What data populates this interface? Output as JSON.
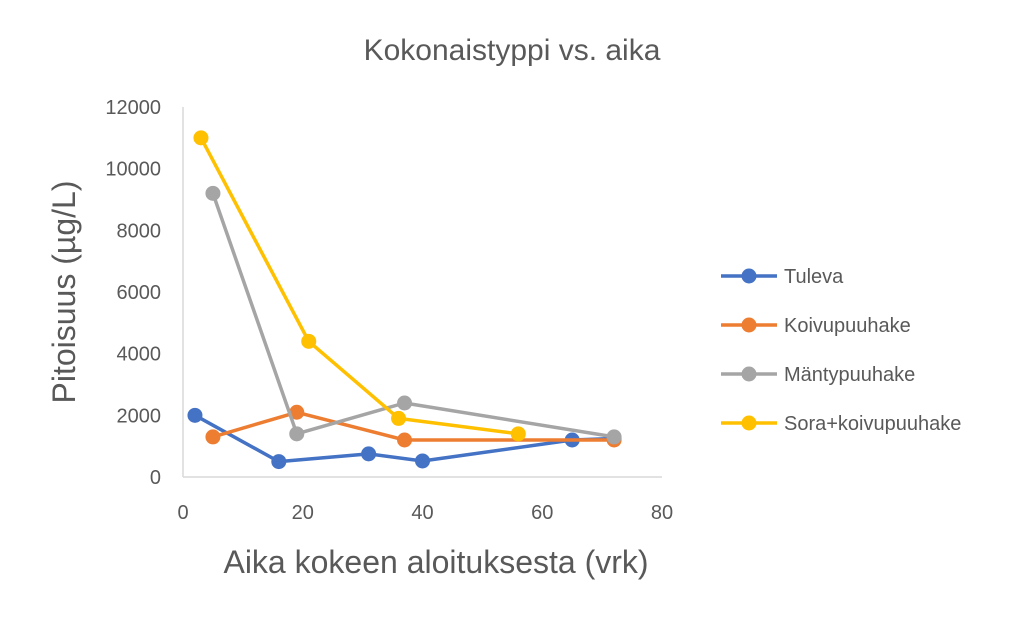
{
  "chart_data": {
    "type": "line",
    "title": "Kokonaistyppi vs. aika",
    "xlabel": "Aika kokeen aloituksesta (vrk)",
    "ylabel": "Pitoisuus (µg/L)",
    "xlim": [
      0,
      80
    ],
    "ylim": [
      0,
      12000
    ],
    "x_ticks": [
      0,
      20,
      40,
      60,
      80
    ],
    "y_ticks": [
      0,
      2000,
      4000,
      6000,
      8000,
      10000,
      12000
    ],
    "grid": false,
    "legend_position": "right",
    "series": [
      {
        "name": "Tuleva",
        "color": "#4472c4",
        "points": [
          [
            2,
            2000
          ],
          [
            16,
            500
          ],
          [
            31,
            750
          ],
          [
            40,
            520
          ],
          [
            65,
            1200
          ],
          [
            72,
            1250
          ]
        ]
      },
      {
        "name": "Koivupuuhake",
        "color": "#ed7d31",
        "points": [
          [
            5,
            1300
          ],
          [
            19,
            2100
          ],
          [
            37,
            1200
          ],
          [
            72,
            1200
          ]
        ]
      },
      {
        "name": "Mäntypuuhake",
        "color": "#a5a5a5",
        "points": [
          [
            5,
            9200
          ],
          [
            19,
            1400
          ],
          [
            37,
            2400
          ],
          [
            72,
            1300
          ]
        ]
      },
      {
        "name": "Sora+koivupuuhake",
        "color": "#ffc000",
        "points": [
          [
            3,
            11000
          ],
          [
            21,
            4400
          ],
          [
            36,
            1900
          ],
          [
            56,
            1400
          ]
        ]
      }
    ]
  }
}
